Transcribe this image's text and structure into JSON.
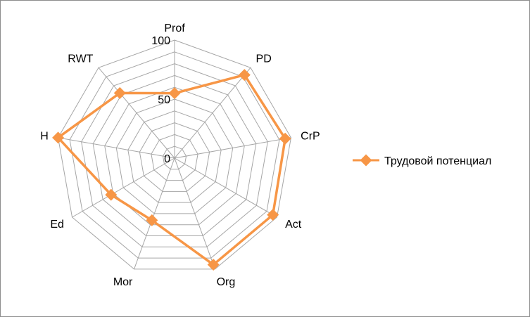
{
  "chart_data": {
    "type": "radar",
    "categories": [
      "Prof",
      "PD",
      "CrP",
      "Act",
      "Org",
      "Mor",
      "Ed",
      "H",
      "RWT"
    ],
    "series": [
      {
        "name": "Трудовой потенциал",
        "values": [
          55,
          92,
          95,
          96,
          96,
          56,
          62,
          100,
          72
        ]
      }
    ],
    "rlim": [
      0,
      100
    ],
    "ticks": [
      0,
      50,
      100
    ],
    "tick_labels": [
      "0",
      "50",
      "100"
    ],
    "grid": true,
    "legend": "right"
  },
  "colors": {
    "series": "#f79646",
    "grid": "#a6a6a6",
    "frame": "#8c8c8c"
  }
}
